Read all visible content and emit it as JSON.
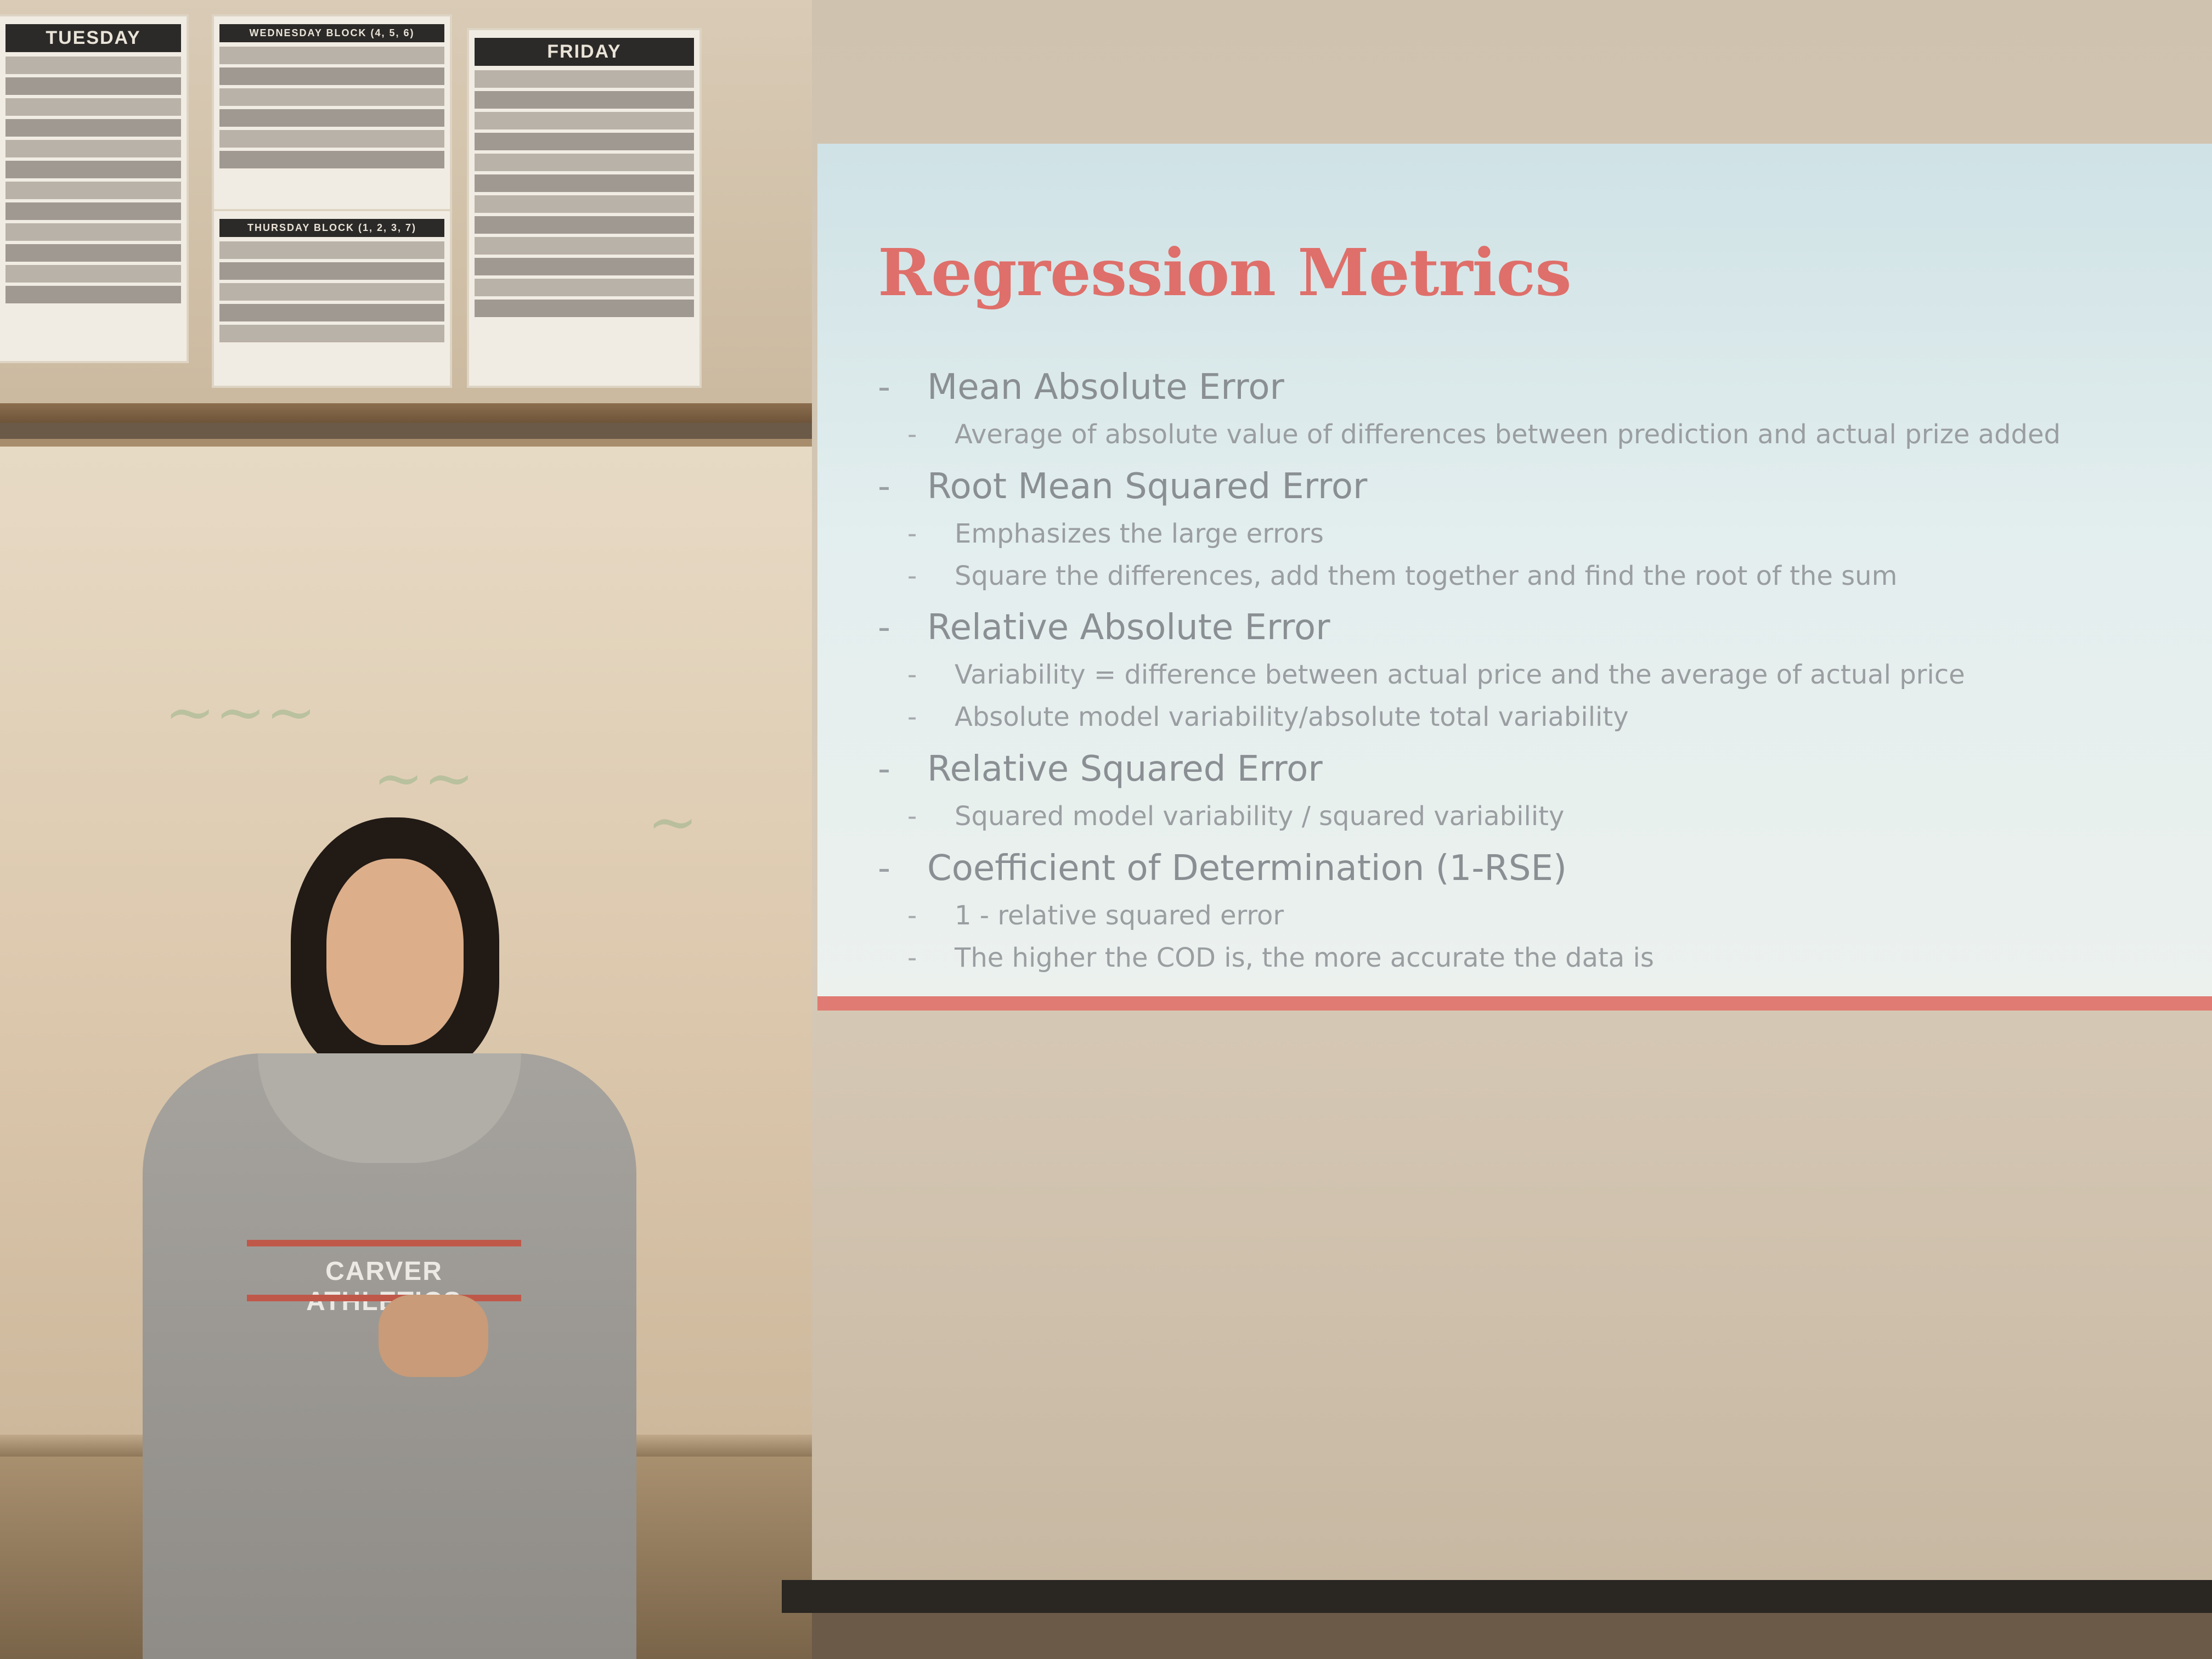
{
  "schedule": {
    "tuesday": "TUESDAY",
    "wednesday": "WEDNESDAY BLOCK (4, 5, 6)",
    "thursday": "THURSDAY BLOCK (1, 2, 3, 7)",
    "friday": "FRIDAY"
  },
  "slide": {
    "title": "Regression Metrics",
    "bullets": [
      {
        "text": "Mean Absolute Error",
        "subs": [
          "Average of absolute value of differences between prediction and actual prize added"
        ]
      },
      {
        "text": "Root Mean Squared Error",
        "subs": [
          "Emphasizes the large errors",
          "Square the differences, add them together and find the root of the sum"
        ]
      },
      {
        "text": "Relative Absolute Error",
        "subs": [
          "Variability = difference between actual price and the average of actual price",
          "Absolute model variability/absolute total variability"
        ]
      },
      {
        "text": "Relative Squared Error",
        "subs": [
          "Squared model variability / squared variability"
        ]
      },
      {
        "text": "Coefficient of Determination (1-RSE)",
        "subs": [
          "1 - relative squared error",
          "The higher the COD is, the more accurate the data is"
        ]
      }
    ]
  },
  "presenter": {
    "hoodie_text": "CARVER ATHLETICS"
  },
  "colors": {
    "title": "#df6f6a",
    "accent_bar": "#e07b73",
    "bullet_text": "#8a8f93"
  }
}
